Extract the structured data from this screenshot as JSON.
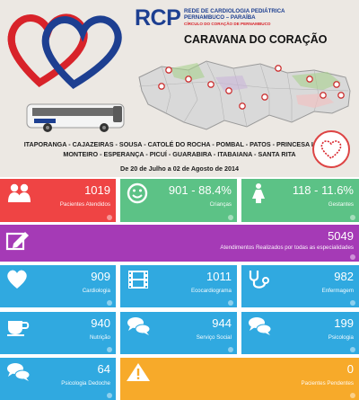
{
  "banner": {
    "logo_prefix": "RCP",
    "logo_sub_1": "REDE DE CARDIOLOGIA PEDIÁTRICA",
    "logo_sub_2": "PERNAMBUCO – PARAÍBA",
    "logo_sub_3": "CÍRCULO DO CORAÇÃO DE PERNAMBUCO",
    "title": "CARAVANA DO CORAÇÃO",
    "cities_line_1": "ITAPORANGA - CAJAZEIRAS - SOUSA - CATOLÉ DO ROCHA - POMBAL - PATOS - PRINCESA ISABEL",
    "cities_line_2": "MONTEIRO - ESPERANÇA - PICUÍ - GUARABIRA - ITABAIANA - SANTA RITA",
    "dates": "De 20 de Julho a 02 de Agosto de 2014"
  },
  "stats": {
    "pacientes": {
      "value": "1019",
      "label": "Pacientes Atendidos",
      "icon": "people-icon"
    },
    "criancas": {
      "value": "901 - 88.4%",
      "label": "Crianças",
      "icon": "smiley-icon"
    },
    "gestantes": {
      "value": "118 - 11.6%",
      "label": "Gestantes",
      "icon": "woman-icon"
    },
    "atendimentos": {
      "value": "5049",
      "label": "Atendimentos Realizados por todas as especialidades",
      "icon": "edit-icon"
    },
    "cardiologia": {
      "value": "909",
      "label": "Cardiologia",
      "icon": "heart-icon"
    },
    "ecocardiograma": {
      "value": "1011",
      "label": "Ecocardiograma",
      "icon": "film-icon"
    },
    "enfermagem": {
      "value": "982",
      "label": "Enfermagem",
      "icon": "stethoscope-icon"
    },
    "nutricao": {
      "value": "940",
      "label": "Nutrição",
      "icon": "cup-icon"
    },
    "servico_social": {
      "value": "944",
      "label": "Serviço Social",
      "icon": "chat-icon"
    },
    "psicologia": {
      "value": "199",
      "label": "Psicologia",
      "icon": "chat-icon"
    },
    "psicologia_dedoche": {
      "value": "64",
      "label": "Psicologia Dedoche",
      "icon": "chat-icon"
    },
    "pacientes_pendentes": {
      "value": "0",
      "label": "Pacientes Pendentes",
      "icon": "warning-icon"
    }
  },
  "colors": {
    "red": "#ef4444",
    "green": "#5cc286",
    "purple": "#a53ab6",
    "blue": "#30a9e0",
    "orange": "#f7aa2a"
  }
}
